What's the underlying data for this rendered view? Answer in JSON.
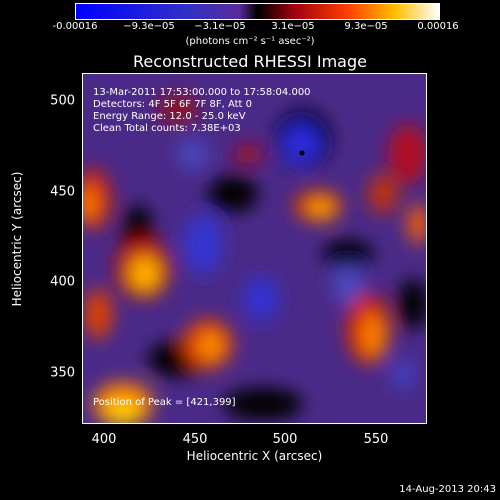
{
  "colorbar": {
    "ticks": [
      "-0.00016",
      "−9.3e−05",
      "−3.1e−05",
      "3.1e−05",
      "9.3e−05",
      "0.00016"
    ],
    "units": "(photons cm⁻² s⁻¹ asec⁻²)"
  },
  "title": "Reconstructed RHESSI Image",
  "info": {
    "time_range": "13-Mar-2011 17:53:00.000 to 17:58:04.000",
    "detectors": "Detectors: 4F 5F 6F 7F 8F, Att 0",
    "energy": "Energy Range: 12.0 - 25.0 keV",
    "method": "Clean     Total counts: 7.38E+03",
    "peak": "Position of Peak = [421,399]"
  },
  "axes": {
    "xlabel": "Heliocentric X (arcsec)",
    "ylabel": "Heliocentric Y (arcsec)",
    "xticks": [
      "400",
      "450",
      "500",
      "550"
    ],
    "yticks": [
      "500",
      "450",
      "400",
      "350"
    ]
  },
  "datestamp": "14-Aug-2013 20:43",
  "colors": {
    "background": "#000000",
    "foreground": "#ffffff"
  }
}
